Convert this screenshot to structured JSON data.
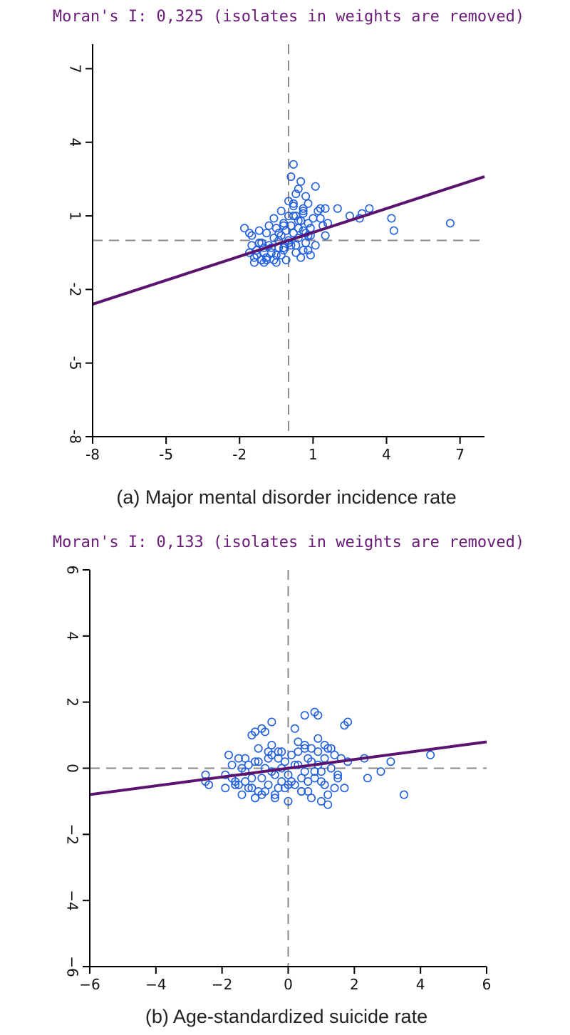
{
  "chart_data": [
    {
      "type": "scatter",
      "title": "Moran's I: 0,325 (isolates in weights are removed)",
      "caption": "(a) Major mental disorder incidence rate",
      "xlim": [
        -8,
        8
      ],
      "ylim": [
        -8,
        8
      ],
      "xticks": [
        -8,
        -5,
        -2,
        1,
        4,
        7
      ],
      "yticks": [
        -8,
        -5,
        -2,
        1,
        4,
        7
      ],
      "xtick_labels": [
        "-8",
        "-5",
        "-2",
        "1",
        "4",
        "7"
      ],
      "ytick_labels": [
        "-8",
        "-5",
        "-2",
        "1",
        "4",
        "7"
      ],
      "reference_lines": {
        "x": 0,
        "y": 0
      },
      "fit_line": {
        "slope": 0.325,
        "intercept": 0
      },
      "x": [
        -1.6,
        -1.5,
        -1.4,
        -1.3,
        -1.2,
        -1.1,
        -1.0,
        -0.9,
        -0.8,
        -0.7,
        -0.6,
        -0.5,
        -0.4,
        -0.3,
        -0.2,
        -0.1,
        0.0,
        0.1,
        0.2,
        0.3,
        0.4,
        0.5,
        0.6,
        0.7,
        0.8,
        0.9,
        -1.5,
        -1.3,
        -1.1,
        -0.9,
        -0.7,
        -0.5,
        -0.3,
        -0.1,
        0.1,
        0.3,
        0.5,
        0.7,
        0.9,
        1.1,
        -1.4,
        -1.2,
        -1.0,
        -0.8,
        -0.6,
        -0.4,
        -0.2,
        0.0,
        0.2,
        0.4,
        0.6,
        0.8,
        -0.6,
        -0.4,
        -0.2,
        0.0,
        0.2,
        0.4,
        0.6,
        0.8,
        1.0,
        1.2,
        1.4,
        -0.3,
        0.0,
        0.3,
        0.6,
        1.3,
        1.6,
        2.0,
        2.5,
        2.9,
        3.0,
        3.3,
        0.3,
        0.4,
        0.5,
        0.1,
        0.2,
        0.7,
        1.1,
        1.5,
        1.5,
        4.2,
        4.3,
        6.6,
        -1.6,
        -1.0,
        -1.8,
        0.9,
        1.3,
        -0.5,
        0.4,
        0.6,
        -0.2,
        0.8,
        -0.9,
        0.2
      ],
      "y": [
        -0.5,
        -0.2,
        -0.9,
        -0.6,
        -0.1,
        -0.8,
        -0.3,
        -0.7,
        -0.2,
        -0.5,
        0.1,
        -0.6,
        -0.3,
        0.2,
        -0.4,
        -0.8,
        0.0,
        -0.2,
        0.3,
        -0.5,
        0.1,
        -0.7,
        0.4,
        -0.1,
        -0.4,
        0.2,
        0.2,
        -0.4,
        -0.1,
        0.3,
        -0.3,
        0.5,
        -0.6,
        0.4,
        0.6,
        -0.2,
        0.8,
        0.3,
        0.5,
        -0.2,
        -0.7,
        0.4,
        -0.5,
        0.6,
        -0.8,
        0.0,
        0.7,
        -0.1,
        1.0,
        0.5,
        1.2,
        0.7,
        0.9,
        0.3,
        0.6,
        1.0,
        1.4,
        0.8,
        1.1,
        1.5,
        0.9,
        1.2,
        0.6,
        1.2,
        1.6,
        1.0,
        1.3,
        0.9,
        0.7,
        1.3,
        1.0,
        0.9,
        1.1,
        1.3,
        1.9,
        2.1,
        2.4,
        2.6,
        1.5,
        1.8,
        2.2,
        0.2,
        1.3,
        0.9,
        0.4,
        0.7,
        0.3,
        -0.9,
        0.5,
        -0.6,
        1.3,
        -0.9,
        0.5,
        -0.4,
        -0.3,
        0.2,
        -0.8,
        3.1
      ]
    },
    {
      "type": "scatter",
      "title": "Moran's I: 0,133 (isolates in weights are removed)",
      "caption": "(b) Age-standardized suicide rate",
      "xlim": [
        -6,
        6
      ],
      "ylim": [
        -6,
        6
      ],
      "xticks": [
        -6,
        -4,
        -2,
        0,
        2,
        4,
        6
      ],
      "yticks": [
        -6,
        -4,
        -2,
        0,
        2,
        4,
        6
      ],
      "xtick_labels": [
        "−6",
        "−4",
        "−2",
        "0",
        "2",
        "4",
        "6"
      ],
      "ytick_labels": [
        "−6",
        "−4",
        "−2",
        "0",
        "2",
        "4",
        "6"
      ],
      "reference_lines": {
        "x": 0,
        "y": 0
      },
      "fit_line": {
        "slope": 0.133,
        "intercept": 0
      },
      "x": [
        -2.5,
        -2.4,
        -1.9,
        -1.8,
        -1.7,
        -1.6,
        -1.5,
        -1.4,
        -1.3,
        -1.2,
        -1.1,
        -1.0,
        -0.9,
        -0.8,
        -0.7,
        -0.6,
        -0.5,
        -0.4,
        -0.3,
        -0.2,
        -0.1,
        0.0,
        0.1,
        0.2,
        0.3,
        0.4,
        0.5,
        0.6,
        0.7,
        0.8,
        0.9,
        1.0,
        1.1,
        1.2,
        1.3,
        1.4,
        1.5,
        1.6,
        1.7,
        1.8,
        -1.9,
        -1.7,
        -1.5,
        -1.3,
        -1.1,
        -0.9,
        -0.7,
        -0.5,
        -0.3,
        -0.1,
        0.1,
        0.3,
        0.5,
        0.7,
        0.9,
        1.1,
        1.3,
        1.5,
        -1.6,
        -1.4,
        -1.2,
        -1.0,
        -0.8,
        -0.6,
        -0.4,
        -0.2,
        0.0,
        0.2,
        0.4,
        0.6,
        0.8,
        1.0,
        1.2,
        1.4,
        -1.1,
        -0.9,
        -0.7,
        -0.5,
        -0.3,
        0.3,
        0.5,
        0.7,
        0.9,
        1.1,
        -1.0,
        -0.8,
        -0.5,
        0.2,
        0.5,
        0.8,
        0.9,
        1.7,
        1.8,
        2.3,
        2.4,
        2.8,
        3.1,
        3.5,
        4.3,
        -1.3,
        -0.4,
        0.0,
        0.4,
        1.2,
        -0.6,
        0.6,
        -1.0,
        1.0,
        -2.5,
        -0.2
      ],
      "y": [
        -0.2,
        -0.5,
        -0.6,
        0.4,
        -0.3,
        -0.5,
        0.3,
        -0.8,
        -0.4,
        0.1,
        -0.6,
        -0.9,
        0.2,
        -0.3,
        -0.7,
        0.5,
        -0.1,
        -0.8,
        0.3,
        -0.4,
        -0.6,
        -0.2,
        0.4,
        -0.5,
        0.1,
        -0.3,
        0.6,
        -0.7,
        0.2,
        -0.1,
        0.5,
        -0.4,
        0.3,
        -0.8,
        0.0,
        0.4,
        -0.2,
        0.3,
        -0.6,
        0.2,
        -0.2,
        0.1,
        -0.5,
        0.3,
        -0.3,
        -0.7,
        0.0,
        0.4,
        -0.6,
        0.2,
        -0.4,
        0.5,
        -0.1,
        -0.9,
        0.1,
        -0.5,
        0.6,
        -0.3,
        -0.4,
        0.0,
        -0.6,
        0.2,
        -0.8,
        0.3,
        -0.2,
        0.5,
        -0.5,
        0.1,
        -0.7,
        0.3,
        -0.3,
        -0.1,
        0.6,
        -0.6,
        1.0,
        0.6,
        1.1,
        0.7,
        0.5,
        0.8,
        0.7,
        0.6,
        0.9,
        0.7,
        1.1,
        1.2,
        1.4,
        1.2,
        1.6,
        1.7,
        1.6,
        1.3,
        1.4,
        0.3,
        -0.3,
        -0.1,
        0.2,
        -0.8,
        0.4,
        -0.1,
        -0.9,
        -1.0,
        -0.7,
        -1.1,
        -0.5,
        -0.4,
        -0.9,
        -1.0,
        -0.4,
        0.0
      ]
    }
  ]
}
